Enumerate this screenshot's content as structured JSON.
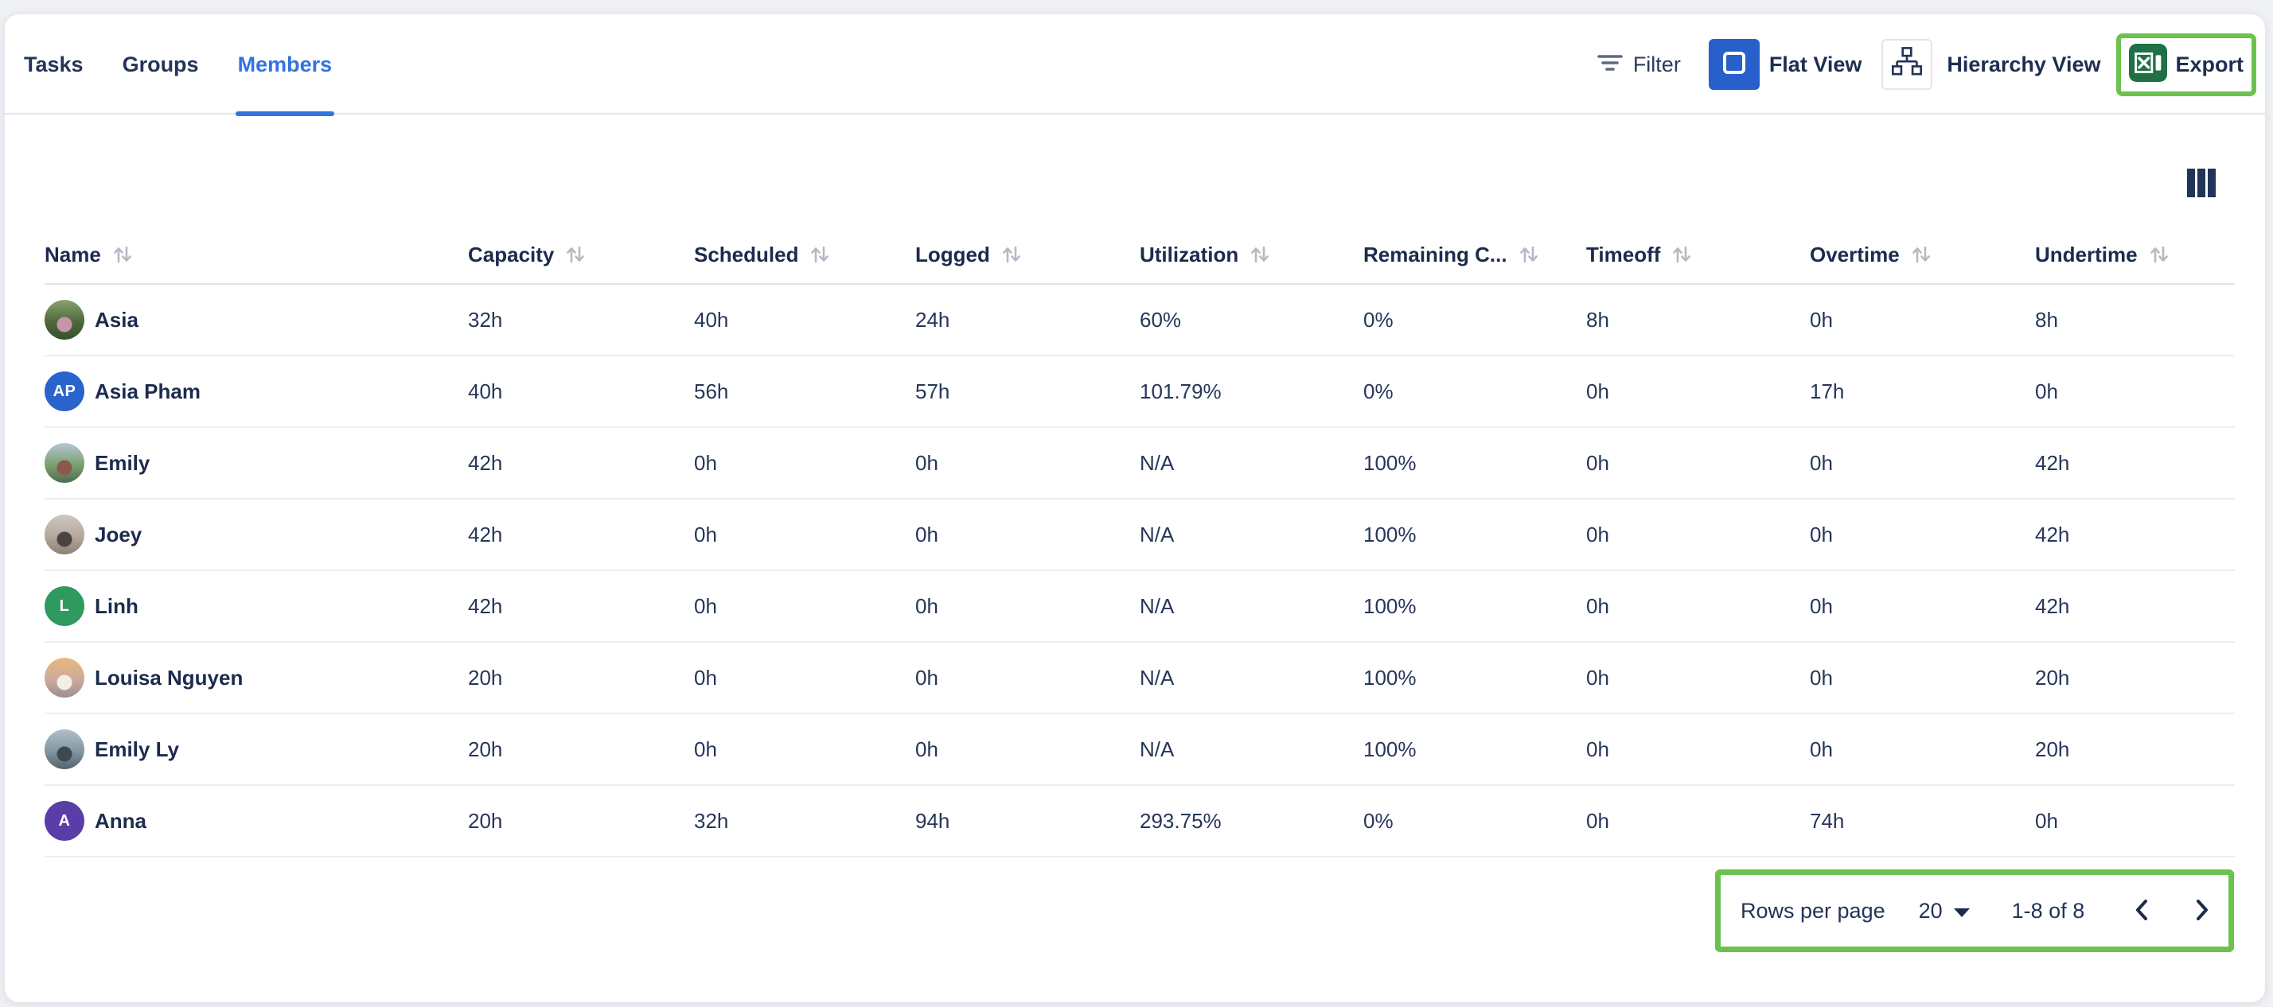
{
  "tabs": [
    {
      "label": "Tasks",
      "active": false
    },
    {
      "label": "Groups",
      "active": false
    },
    {
      "label": "Members",
      "active": true
    }
  ],
  "toolbar": {
    "filter_label": "Filter",
    "flat_view_label": "Flat View",
    "hierarchy_view_label": "Hierarchy View",
    "export_label": "Export"
  },
  "icons": {
    "filter": "filter-lines",
    "flat_view": "square-outline",
    "hierarchy_view": "sitemap",
    "export": "excel-logo",
    "columns": "three-vertical-bars",
    "sort": "arrows-up-down",
    "rows_per_page": "caret-down",
    "prev_page": "chevron-left",
    "next_page": "chevron-right"
  },
  "colors": {
    "annotation_green": "#6cc24e",
    "accent_blue": "#2760cb",
    "active_tab_blue": "#3373de",
    "excel_green": "#1e7145",
    "text_dark": "#1c2b4d",
    "sort_icon_gray": "#b4bac4"
  },
  "table": {
    "columns": [
      {
        "key": "name",
        "label": "Name",
        "sortable": true
      },
      {
        "key": "capacity",
        "label": "Capacity",
        "sortable": true
      },
      {
        "key": "scheduled",
        "label": "Scheduled",
        "sortable": true
      },
      {
        "key": "logged",
        "label": "Logged",
        "sortable": true
      },
      {
        "key": "utilization",
        "label": "Utilization",
        "sortable": true
      },
      {
        "key": "remaining_capacity",
        "label": "Remaining C...",
        "sortable": true
      },
      {
        "key": "timeoff",
        "label": "Timeoff",
        "sortable": true
      },
      {
        "key": "overtime",
        "label": "Overtime",
        "sortable": true
      },
      {
        "key": "undertime",
        "label": "Undertime",
        "sortable": true
      }
    ],
    "rows": [
      {
        "name": "Asia",
        "avatar": {
          "kind": "photo",
          "colors": [
            "#8aa36e",
            "#4e683d",
            "#37512c"
          ],
          "accent": "#c894aa"
        },
        "capacity": "32h",
        "scheduled": "40h",
        "logged": "24h",
        "utilization": "60%",
        "remaining_capacity": "0%",
        "timeoff": "8h",
        "overtime": "0h",
        "undertime": "8h"
      },
      {
        "name": "Asia Pham",
        "avatar": {
          "kind": "initials",
          "initials": "AP",
          "bg": "#2a63cc"
        },
        "capacity": "40h",
        "scheduled": "56h",
        "logged": "57h",
        "utilization": "101.79%",
        "remaining_capacity": "0%",
        "timeoff": "0h",
        "overtime": "17h",
        "undertime": "0h"
      },
      {
        "name": "Emily",
        "avatar": {
          "kind": "photo",
          "colors": [
            "#b5c6d6",
            "#7ba06d",
            "#4f6b52"
          ],
          "accent": "#8c5a4a"
        },
        "capacity": "42h",
        "scheduled": "0h",
        "logged": "0h",
        "utilization": "N/A",
        "remaining_capacity": "100%",
        "timeoff": "0h",
        "overtime": "0h",
        "undertime": "42h"
      },
      {
        "name": "Joey",
        "avatar": {
          "kind": "photo",
          "colors": [
            "#cfc8c0",
            "#b3a89e",
            "#8d7f72"
          ],
          "accent": "#4a4441"
        },
        "capacity": "42h",
        "scheduled": "0h",
        "logged": "0h",
        "utilization": "N/A",
        "remaining_capacity": "100%",
        "timeoff": "0h",
        "overtime": "0h",
        "undertime": "42h"
      },
      {
        "name": "Linh",
        "avatar": {
          "kind": "initials",
          "initials": "L",
          "bg": "#2f9a5e"
        },
        "capacity": "42h",
        "scheduled": "0h",
        "logged": "0h",
        "utilization": "N/A",
        "remaining_capacity": "100%",
        "timeoff": "0h",
        "overtime": "0h",
        "undertime": "42h"
      },
      {
        "name": "Louisa Nguyen",
        "avatar": {
          "kind": "photo",
          "colors": [
            "#e9b77e",
            "#cdaa9b",
            "#9b8f92"
          ],
          "accent": "#f3efe8"
        },
        "capacity": "20h",
        "scheduled": "0h",
        "logged": "0h",
        "utilization": "N/A",
        "remaining_capacity": "100%",
        "timeoff": "0h",
        "overtime": "0h",
        "undertime": "20h"
      },
      {
        "name": "Emily Ly",
        "avatar": {
          "kind": "photo",
          "colors": [
            "#b2bfca",
            "#8297a3",
            "#57616b"
          ],
          "accent": "#3f4750"
        },
        "capacity": "20h",
        "scheduled": "0h",
        "logged": "0h",
        "utilization": "N/A",
        "remaining_capacity": "100%",
        "timeoff": "0h",
        "overtime": "0h",
        "undertime": "20h"
      },
      {
        "name": "Anna",
        "avatar": {
          "kind": "initials",
          "initials": "A",
          "bg": "#5b3da8"
        },
        "capacity": "20h",
        "scheduled": "32h",
        "logged": "94h",
        "utilization": "293.75%",
        "remaining_capacity": "0%",
        "timeoff": "0h",
        "overtime": "74h",
        "undertime": "0h"
      }
    ]
  },
  "pagination": {
    "rows_per_page_label": "Rows per page",
    "rows_per_page_value": "20",
    "range_label": "1-8 of 8"
  }
}
